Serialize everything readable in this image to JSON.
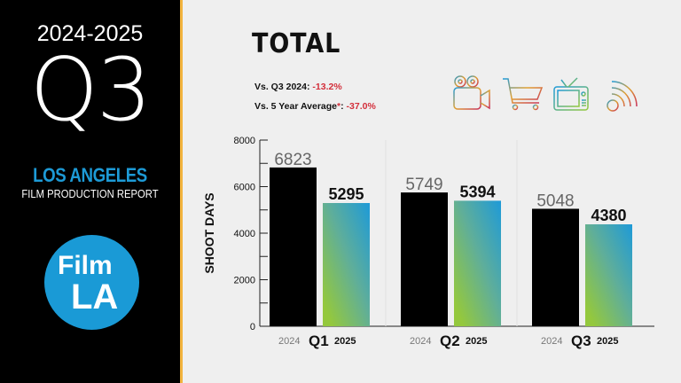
{
  "sidebar": {
    "years": "2024-2025",
    "quarter": "Q3",
    "city": "LOS ANGELES",
    "report": "FILM PRODUCTION REPORT",
    "logo_line1": "Film",
    "logo_line2": "LA"
  },
  "header": {
    "title": "TOTAL",
    "comparisons": [
      {
        "label": "Vs. Q3 2024:",
        "asterisk": "",
        "value": "-13.2%"
      },
      {
        "label": "Vs. 5 Year Average",
        "asterisk": "*",
        "value": "-37.0%"
      }
    ],
    "icons": [
      "film-camera-icon",
      "shopping-cart-icon",
      "television-icon",
      "web-signal-icon"
    ]
  },
  "colors": {
    "accent_blue": "#1a9ad6",
    "negative": "#d32f3b",
    "bar_2024": "#000000",
    "bar_2025_top": "#1e9ad8",
    "bar_2025_bottom": "#94c83d",
    "stripe": "#f2b33d"
  },
  "chart_data": {
    "type": "bar",
    "categories": [
      "Q1",
      "Q2",
      "Q3"
    ],
    "series": [
      {
        "name": "2024",
        "values": [
          6823,
          5749,
          5048
        ]
      },
      {
        "name": "2025",
        "values": [
          5295,
          5394,
          4380
        ]
      }
    ],
    "ylabel": "SHOOT DAYS",
    "ylim": [
      0,
      8000
    ],
    "yticks": [
      "0",
      "2000",
      "4000",
      "6000",
      "8000"
    ],
    "grid": false
  }
}
